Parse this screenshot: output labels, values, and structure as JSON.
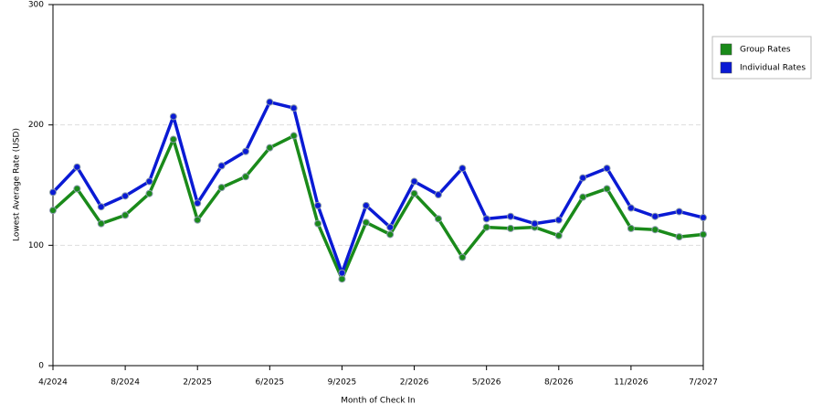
{
  "chart_data": {
    "type": "line",
    "x_label": "Month of Check In",
    "y_label": "Lowest Average Rate (USD)",
    "categories": [
      "4/2024",
      null,
      null,
      "8/2024",
      null,
      null,
      "2/2025",
      null,
      null,
      "6/2025",
      null,
      null,
      "9/2025",
      null,
      null,
      "2/2026",
      null,
      null,
      "5/2026",
      null,
      null,
      "8/2026",
      null,
      null,
      "11/2026",
      null,
      null,
      "7/2027"
    ],
    "series": [
      {
        "name": "Group Rates",
        "color": "#1a8a1a",
        "values": [
          129,
          147,
          118,
          125,
          143,
          188,
          121,
          148,
          157,
          181,
          191,
          118,
          72,
          119,
          109,
          143,
          122,
          90,
          115,
          114,
          115,
          108,
          140,
          147,
          114,
          113,
          107,
          109
        ]
      },
      {
        "name": "Individual Rates",
        "color": "#0a1ad4",
        "values": [
          144,
          165,
          132,
          141,
          153,
          207,
          135,
          166,
          178,
          219,
          214,
          133,
          77,
          133,
          115,
          153,
          142,
          164,
          122,
          124,
          118,
          121,
          156,
          164,
          131,
          124,
          128,
          123
        ]
      }
    ],
    "ylim": [
      0,
      300
    ],
    "yticks": [
      0,
      100,
      200,
      300
    ],
    "grid": true
  }
}
